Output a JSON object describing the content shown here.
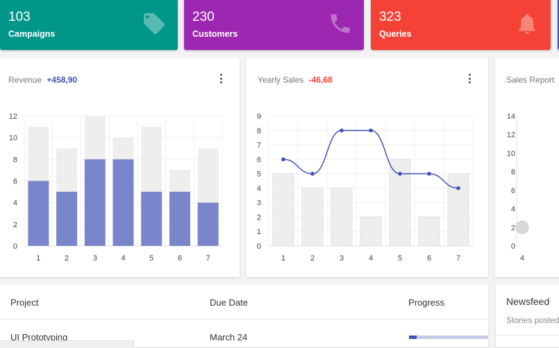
{
  "stats": [
    {
      "value": "103",
      "label": "Campaigns",
      "icon": "tag-icon",
      "color": "#009688"
    },
    {
      "value": "230",
      "label": "Customers",
      "icon": "phone-icon",
      "color": "#9c27b0"
    },
    {
      "value": "323",
      "label": "Queries",
      "icon": "bell-icon",
      "color": "#f44336"
    }
  ],
  "revenue": {
    "title": "Revenue",
    "delta": "+458,90",
    "delta_color": "#3f51b5",
    "chart_data": {
      "type": "bar",
      "categories": [
        "1",
        "2",
        "3",
        "4",
        "5",
        "6",
        "7"
      ],
      "series": [
        {
          "values": [
            6,
            5,
            8,
            8,
            5,
            5,
            4
          ],
          "color": "#7986cb"
        },
        {
          "values": [
            11,
            9,
            12,
            10,
            11,
            7,
            9
          ],
          "color": "#eeeeee"
        }
      ],
      "ylim": [
        0,
        12
      ],
      "yticks": [
        "0",
        "2",
        "4",
        "6",
        "8",
        "10",
        "12"
      ],
      "grid": true
    }
  },
  "yearly": {
    "title": "Yearly Sales",
    "delta": "-46,68",
    "delta_color": "#f44336",
    "chart_data": {
      "type": "bar+line",
      "categories": [
        "1",
        "2",
        "3",
        "4",
        "5",
        "6",
        "7"
      ],
      "bars": {
        "values": [
          5,
          4,
          4,
          2,
          6,
          2,
          5
        ],
        "color": "#eeeeee"
      },
      "line": {
        "values": [
          6,
          5,
          8,
          8,
          5,
          5,
          4
        ],
        "color": "#3f51b5"
      },
      "ylim": [
        0,
        9
      ],
      "yticks": [
        "0",
        "1",
        "2",
        "3",
        "4",
        "5",
        "6",
        "7",
        "8",
        "9"
      ],
      "grid": true
    }
  },
  "sales_report": {
    "title": "Sales Report",
    "chart_data": {
      "type": "scatter",
      "x": [
        "4"
      ],
      "points": [
        {
          "x": 4,
          "y": 2
        }
      ],
      "ylim": [
        0,
        14
      ],
      "yticks": [
        "0",
        "2",
        "4",
        "6",
        "8",
        "10",
        "12",
        "14"
      ]
    }
  },
  "table": {
    "columns": [
      "Project",
      "Due Date",
      "Progress"
    ],
    "rows": [
      {
        "project": "UI Prototyping",
        "due": "March 24",
        "progress": 0.1
      }
    ]
  },
  "newsfeed": {
    "title": "Newsfeed",
    "subtitle": "Stories posted"
  }
}
